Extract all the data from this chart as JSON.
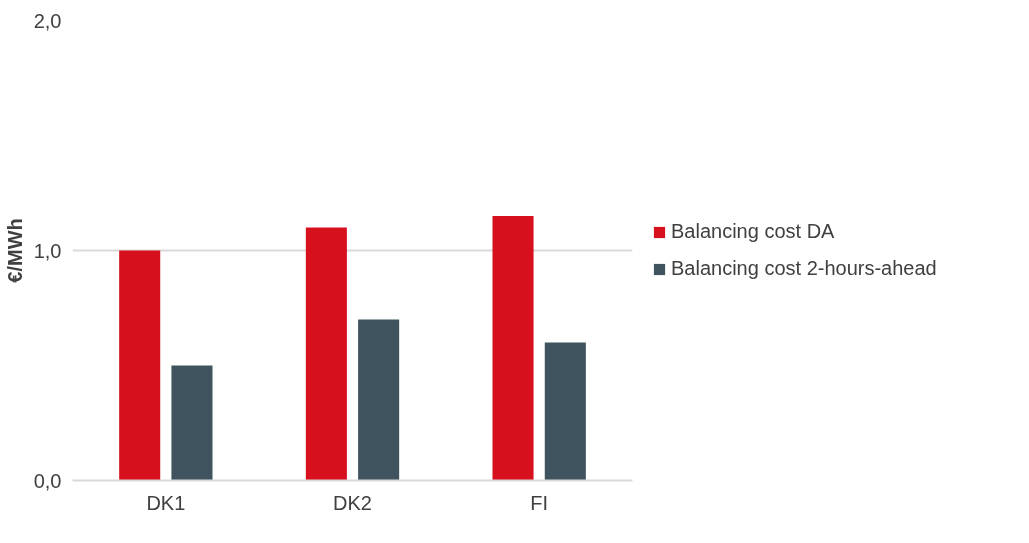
{
  "chart_data": {
    "type": "bar",
    "ylabel": "€/MWh",
    "categories": [
      "DK1",
      "DK2",
      "FI"
    ],
    "series": [
      {
        "name": "Balancing cost DA",
        "color": "#d7101e",
        "values": [
          1.0,
          1.1,
          1.15
        ]
      },
      {
        "name": "Balancing cost 2-hours-ahead",
        "color": "#3f545e",
        "values": [
          0.5,
          0.7,
          0.6
        ]
      }
    ],
    "ylim": [
      0,
      2
    ],
    "yticks": [
      {
        "value": 0,
        "label": "0,0"
      },
      {
        "value": 1,
        "label": "1,0"
      },
      {
        "value": 2,
        "label": "2,0"
      }
    ],
    "grid": "y",
    "legend": "right"
  }
}
